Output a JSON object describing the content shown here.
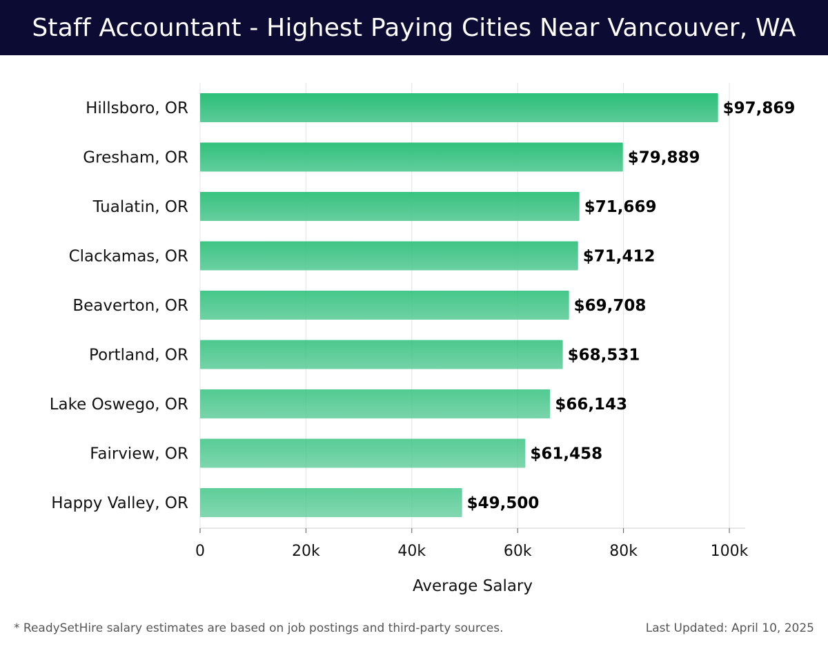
{
  "header": {
    "title": "Staff Accountant - Highest Paying Cities Near Vancouver, WA"
  },
  "chart_data": {
    "type": "bar",
    "orientation": "horizontal",
    "categories": [
      "Hillsboro, OR",
      "Gresham, OR",
      "Tualatin, OR",
      "Clackamas, OR",
      "Beaverton, OR",
      "Portland, OR",
      "Lake Oswego, OR",
      "Fairview, OR",
      "Happy Valley, OR"
    ],
    "values": [
      97869,
      79889,
      71669,
      71412,
      69708,
      68531,
      66143,
      61458,
      49500
    ],
    "value_labels": [
      "$97,869",
      "$79,889",
      "$71,669",
      "$71,412",
      "$69,708",
      "$68,531",
      "$66,143",
      "$61,458",
      "$49,500"
    ],
    "xlabel": "Average Salary",
    "ylabel": "",
    "xlim": [
      0,
      100000
    ],
    "x_ticks": [
      0,
      20000,
      40000,
      60000,
      80000,
      100000
    ],
    "x_tick_labels": [
      "0",
      "20k",
      "40k",
      "60k",
      "80k",
      "100k"
    ],
    "grid": "vertical",
    "colors": {
      "bar_top": "#2bbf78",
      "bar_bottom": "#5ccb98",
      "grid": "#e3e3e3",
      "title_bg": "#0b0b33"
    }
  },
  "footer": {
    "note": "* ReadySetHire salary estimates are based on job postings and third-party sources.",
    "updated": "Last Updated: April 10, 2025"
  }
}
